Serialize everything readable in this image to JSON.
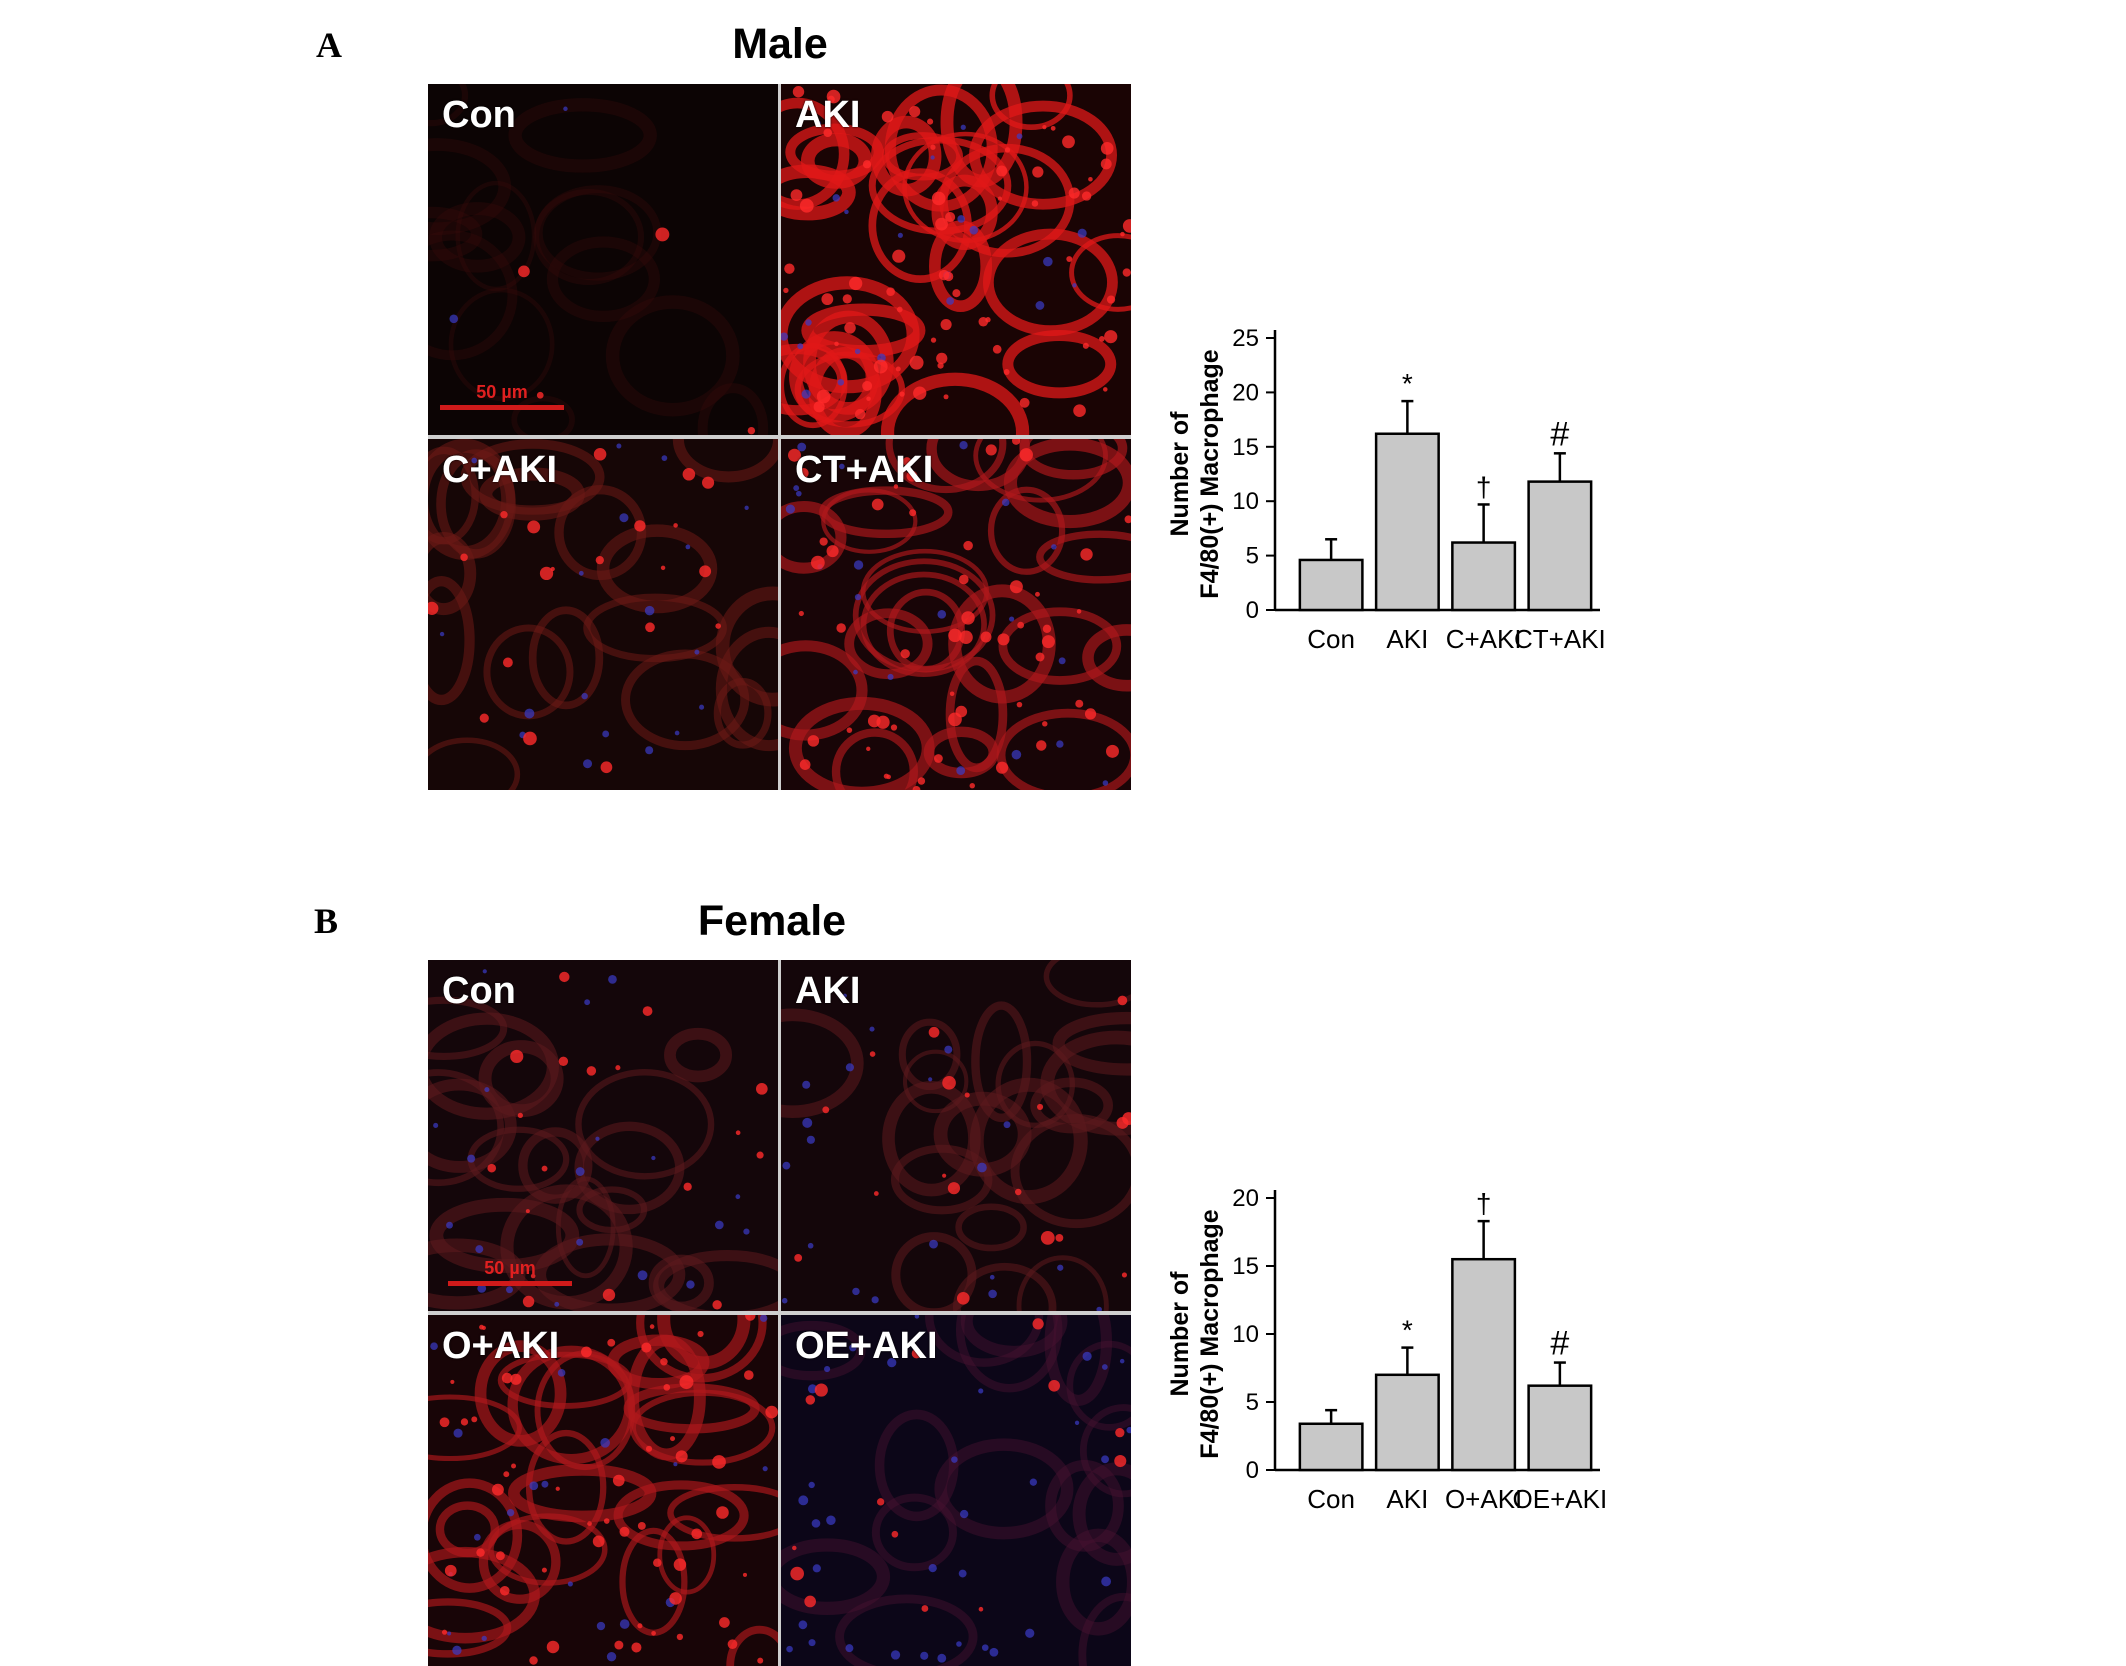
{
  "panels": [
    {
      "letter": "A",
      "title": "Male",
      "tiles": [
        {
          "label": "Con",
          "tone": "dark"
        },
        {
          "label": "AKI",
          "tone": "intense"
        },
        {
          "label": "C+AKI",
          "tone": "medium"
        },
        {
          "label": "CT+AKI",
          "tone": "strong"
        }
      ],
      "scale_bar": "50 µm"
    },
    {
      "letter": "B",
      "title": "Female",
      "tiles": [
        {
          "label": "Con",
          "tone": "muted"
        },
        {
          "label": "AKI",
          "tone": "muted"
        },
        {
          "label": "O+AKI",
          "tone": "strong"
        },
        {
          "label": "OE+AKI",
          "tone": "blue"
        }
      ],
      "scale_bar": "50 µm"
    }
  ],
  "chart_data": [
    {
      "type": "bar",
      "categories": [
        "Con",
        "AKI",
        "C+AKI",
        "CT+AKI"
      ],
      "values": [
        4.6,
        16.2,
        6.2,
        11.8
      ],
      "errors": [
        1.9,
        3.0,
        3.5,
        2.6
      ],
      "markers": [
        "",
        "*",
        "†",
        "#"
      ],
      "ylabel_line1": "Number of",
      "ylabel_line2": "F4/80(+) Macrophage",
      "ylim": [
        0,
        25
      ],
      "yticks": [
        0,
        5,
        10,
        15,
        20,
        25
      ],
      "bar_color": "#c8c8c8"
    },
    {
      "type": "bar",
      "categories": [
        "Con",
        "AKI",
        "O+AKI",
        "OE+AKI"
      ],
      "values": [
        3.4,
        7.0,
        15.5,
        6.2
      ],
      "errors": [
        1.0,
        2.0,
        2.8,
        1.7
      ],
      "markers": [
        "",
        "*",
        "†",
        "#"
      ],
      "ylabel_line1": "Number of",
      "ylabel_line2": "F4/80(+) Macrophage",
      "ylim": [
        0,
        20
      ],
      "yticks": [
        0,
        5,
        10,
        15,
        20
      ],
      "bar_color": "#c8c8c8"
    }
  ]
}
